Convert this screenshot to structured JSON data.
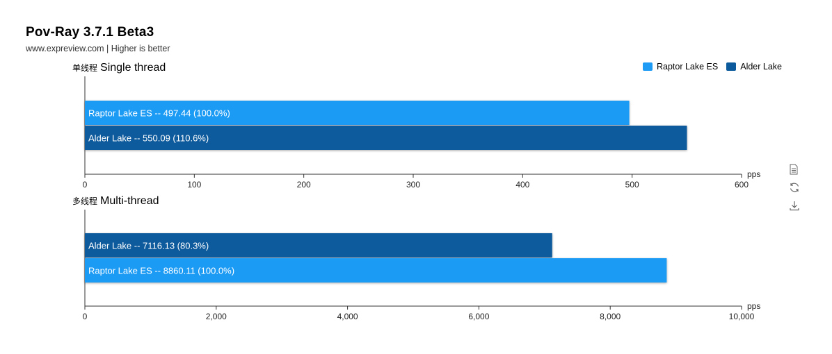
{
  "header": {
    "title": "Pov-Ray 3.7.1 Beta3",
    "subtitle": "www.expreview.com | Higher is better"
  },
  "legend": [
    {
      "name": "Raptor Lake ES",
      "color": "#1e9bf5"
    },
    {
      "name": "Alder Lake",
      "color": "#0a5a9c"
    }
  ],
  "toolbox": [
    "data-view-icon",
    "restore-icon",
    "save-image-icon"
  ],
  "chart_data": [
    {
      "type": "bar",
      "orientation": "horizontal",
      "label_cn": "单线程",
      "label_en": "Single thread",
      "unit": "pps",
      "xlim": [
        0,
        600
      ],
      "ticks": [
        "0",
        "100",
        "200",
        "300",
        "400",
        "500",
        "600"
      ],
      "tick_values": [
        0,
        100,
        200,
        300,
        400,
        500,
        600
      ],
      "bars": [
        {
          "name": "Raptor Lake ES",
          "value": 497.44,
          "label": "Raptor Lake ES  --  497.44 (100.0%)",
          "color": "#1e9bf5"
        },
        {
          "name": "Alder Lake",
          "value": 550.09,
          "label": "Alder Lake  --  550.09 (110.6%)",
          "color": "#0a5a9c"
        }
      ]
    },
    {
      "type": "bar",
      "orientation": "horizontal",
      "label_cn": "多线程",
      "label_en": "Multi-thread",
      "unit": "pps",
      "xlim": [
        0,
        10000
      ],
      "ticks": [
        "0",
        "2,000",
        "4,000",
        "6,000",
        "8,000",
        "10,000"
      ],
      "tick_values": [
        0,
        2000,
        4000,
        6000,
        8000,
        10000
      ],
      "bars": [
        {
          "name": "Alder Lake",
          "value": 7116.13,
          "label": "Alder Lake  --  7116.13 (80.3%)",
          "color": "#0a5a9c"
        },
        {
          "name": "Raptor Lake ES",
          "value": 8860.11,
          "label": "Raptor Lake ES  --  8860.11 (100.0%)",
          "color": "#1e9bf5"
        }
      ]
    }
  ]
}
